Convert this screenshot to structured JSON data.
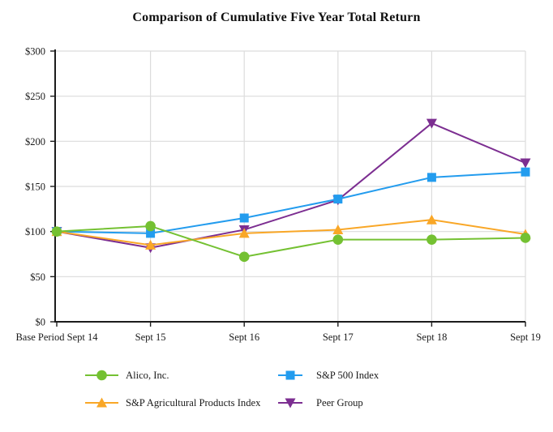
{
  "title": "Comparison of Cumulative Five Year Total Return",
  "chart_data": {
    "type": "line",
    "title": "Comparison of Cumulative Five Year Total Return",
    "x_labels": [
      "Base Period Sept 14",
      "Sept 15",
      "Sept 16",
      "Sept 17",
      "Sept 18",
      "Sept 19"
    ],
    "ytick_labels": [
      "$0",
      "$50",
      "$100",
      "$150",
      "$200",
      "$250",
      "$300"
    ],
    "ylim": [
      0,
      300
    ],
    "ytick_step": 50,
    "grid": true,
    "legend_position": "bottom",
    "series": [
      {
        "name": "Alico, Inc.",
        "marker": "circle",
        "color": "#74C132",
        "values": [
          100,
          106,
          72,
          91,
          91,
          93
        ]
      },
      {
        "name": "S&P 500 Index",
        "marker": "square",
        "color": "#239CEE",
        "values": [
          100,
          98,
          115,
          136,
          160,
          166
        ]
      },
      {
        "name": "S&P Agricultural Products Index",
        "marker": "triangle-up",
        "color": "#F9A727",
        "values": [
          100,
          85,
          98,
          102,
          113,
          97
        ]
      },
      {
        "name": "Peer Group",
        "marker": "triangle-down",
        "color": "#7C2E91",
        "values": [
          100,
          82,
          102,
          135,
          220,
          176
        ]
      }
    ],
    "draw_order": [
      3,
      1,
      2,
      0
    ],
    "colors": {
      "grid": "#DCDCDC",
      "axis": "#1C1C1C",
      "text": "#1A1A1A",
      "background": "#FFFFFF"
    }
  }
}
